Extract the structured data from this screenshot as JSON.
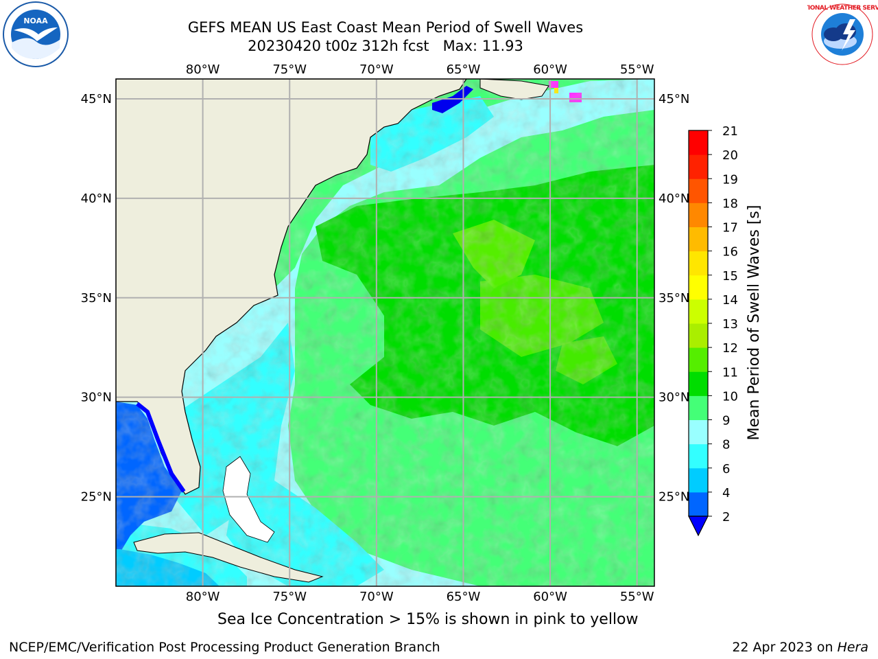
{
  "title": {
    "line1": "GEFS MEAN US East Coast Mean Period of Swell Waves",
    "line2": "20230420 t00z 312h fcst   Max: 11.93"
  },
  "logos": {
    "left": {
      "icon": "noaa-logo",
      "text": "NOAA"
    },
    "right": {
      "icon": "nws-logo",
      "text": "NATIONAL WEATHER SERVICE"
    }
  },
  "map": {
    "projection": "cylindrical",
    "lon_range": [
      -85,
      -54
    ],
    "lat_range": [
      20.5,
      46
    ],
    "land_color": "#eeeedd",
    "coast_color": "#000000",
    "grid_color": "#b0b0b0",
    "lon_ticks": [
      {
        "value": -80,
        "label": "80°W"
      },
      {
        "value": -75,
        "label": "75°W"
      },
      {
        "value": -70,
        "label": "70°W"
      },
      {
        "value": -65,
        "label": "65°W"
      },
      {
        "value": -60,
        "label": "60°W"
      },
      {
        "value": -55,
        "label": "55°W"
      }
    ],
    "lat_ticks": [
      {
        "value": 45,
        "label": "45°N"
      },
      {
        "value": 40,
        "label": "40°N"
      },
      {
        "value": 35,
        "label": "35°N"
      },
      {
        "value": 30,
        "label": "30°N"
      },
      {
        "value": 25,
        "label": "25°N"
      }
    ]
  },
  "colorbar": {
    "label": "Mean Period of Swell Waves [s]",
    "extend_min": true,
    "ticks": [
      "2",
      "4",
      "6",
      "8",
      "9",
      "10",
      "11",
      "12",
      "13",
      "14",
      "15",
      "16",
      "17",
      "18",
      "19",
      "20",
      "21"
    ],
    "tick_values": [
      2,
      4,
      6,
      8,
      9,
      10,
      11,
      12,
      13,
      14,
      15,
      16,
      17,
      18,
      19,
      20,
      21
    ],
    "under_color": "#0000ff",
    "colors": [
      "#0066ff",
      "#00ccff",
      "#33ffff",
      "#99ffff",
      "#44ff77",
      "#00dd00",
      "#55ee00",
      "#aaee00",
      "#ccff00",
      "#ffff00",
      "#ffe600",
      "#ffbb00",
      "#ff8800",
      "#ff5500",
      "#ff2200",
      "#ff0000"
    ]
  },
  "footer": {
    "ice_note": "Sea Ice Concentration > 15% is shown in pink to yellow",
    "credit": "NCEP/EMC/Verification Post Processing Product Generation Branch",
    "date": "22 Apr 2023 on ",
    "host": "Hera"
  }
}
